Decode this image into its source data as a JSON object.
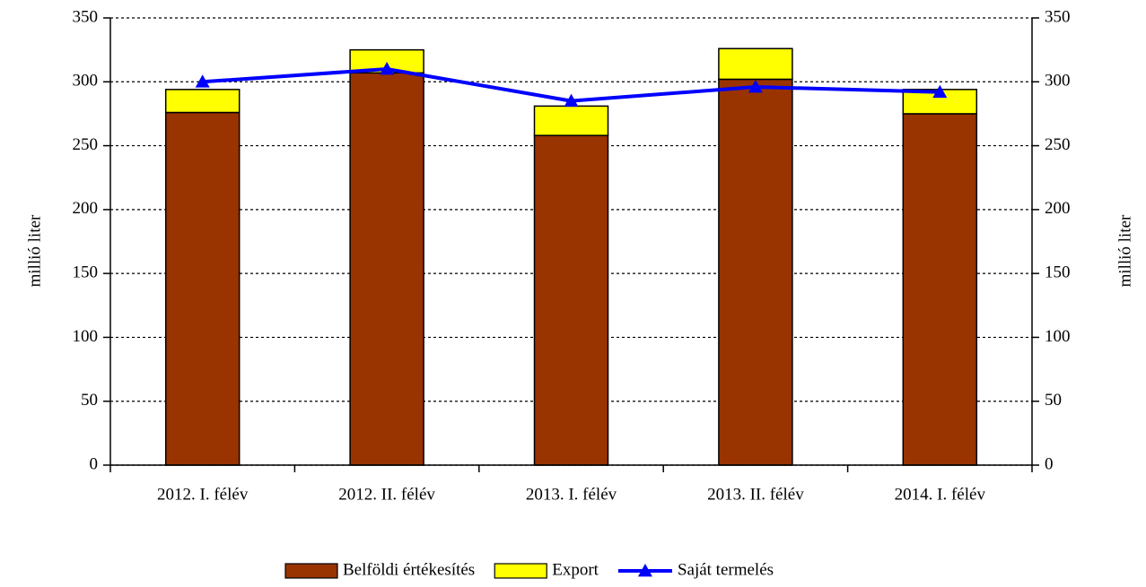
{
  "chart_data": {
    "type": "bar",
    "categories": [
      "2012. I. félév",
      "2012. II. félév",
      "2013. I. félév",
      "2013. II. félév",
      "2014. I. félév"
    ],
    "series": [
      {
        "name": "Belföldi értékesítés",
        "type": "bar",
        "color": "#993300",
        "values": [
          276,
          307,
          258,
          302,
          275
        ]
      },
      {
        "name": "Export",
        "type": "bar",
        "color": "#ffff00",
        "values": [
          18,
          18,
          23,
          24,
          19
        ]
      },
      {
        "name": "Saját termelés",
        "type": "line",
        "axis": "y2",
        "color": "#0000ff",
        "values": [
          300,
          310,
          285,
          296,
          292
        ]
      }
    ],
    "stacked": true,
    "ylabel": "millió liter",
    "y2label": "millió liter",
    "ylim": [
      0,
      350
    ],
    "yticks": [
      0,
      50,
      100,
      150,
      200,
      250,
      300,
      350
    ],
    "y2lim": [
      0,
      350
    ],
    "y2ticks": [
      0,
      50,
      100,
      150,
      200,
      250,
      300,
      350
    ],
    "grid": true,
    "legend": "bottom"
  }
}
